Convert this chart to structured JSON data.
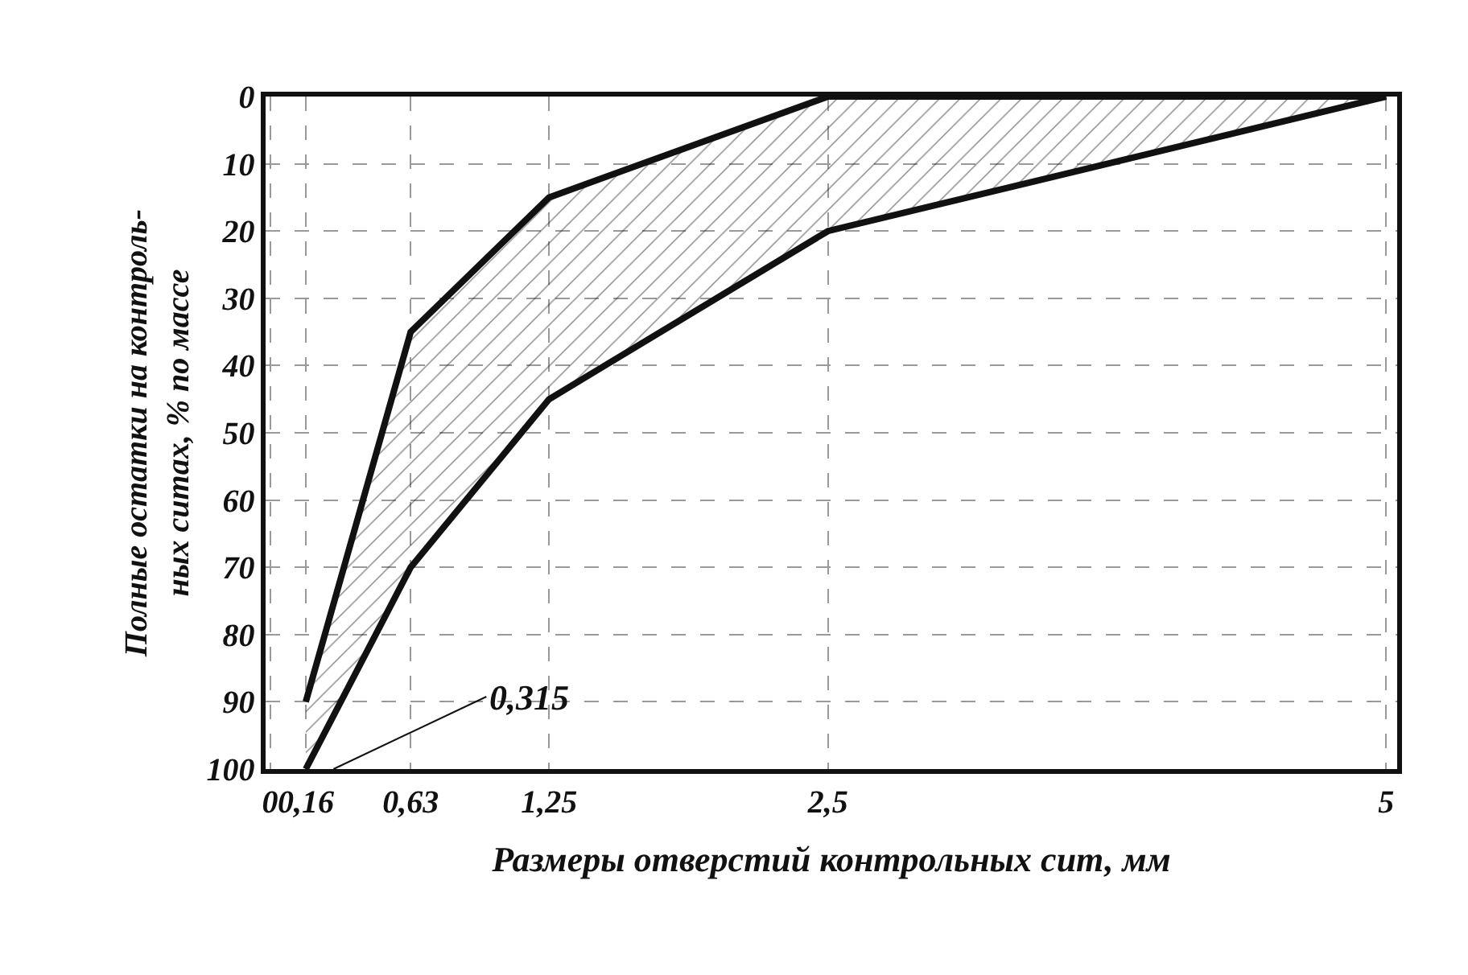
{
  "chart_data": {
    "type": "line",
    "xlabel": "Размеры отверстий контрольных сит, мм",
    "ylabel": "Полные остатки на контроль-\nных ситах, % по массе",
    "x": [
      0.16,
      0.63,
      1.25,
      2.5,
      5
    ],
    "series": [
      {
        "color": "#111111",
        "values": [
          90,
          35,
          15,
          0,
          0
        ]
      },
      {
        "type": "area",
        "color": "#111111",
        "values": [
          100,
          70,
          45,
          20,
          0
        ]
      }
    ],
    "xlim": [
      -0.02,
      5.05
    ],
    "ylim": [
      100,
      0
    ],
    "xticks": [
      0,
      {
        "value": 0.16,
        "label": "0,16"
      },
      {
        "value": 0.63,
        "label": "0,63"
      },
      {
        "value": 1.25,
        "label": "1,25"
      },
      {
        "value": 2.5,
        "label": "2,5"
      },
      5
    ],
    "yticks": [
      0,
      10,
      20,
      30,
      40,
      50,
      60,
      70,
      80,
      90,
      100
    ],
    "grid": true,
    "annotations": [
      "0,315"
    ]
  }
}
